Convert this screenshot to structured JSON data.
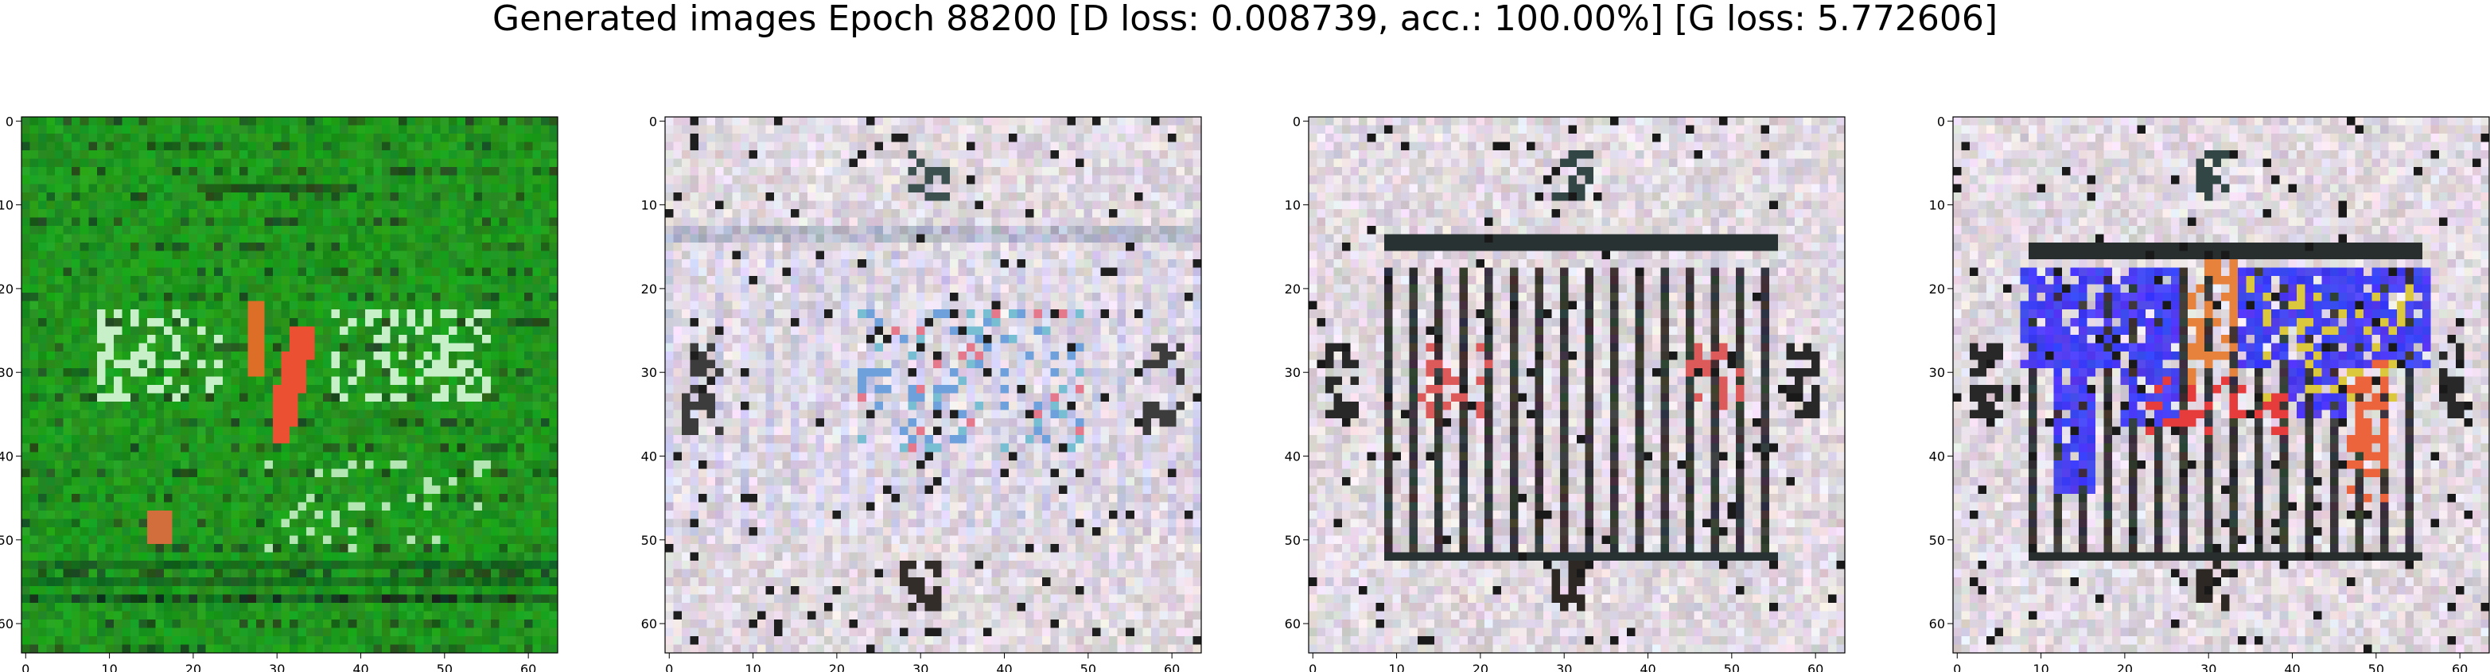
{
  "title": "Generated images Epoch 88200 [D loss: 0.008739, acc.: 100.00%] [G loss: 5.772606]",
  "subplots": [
    {
      "label": "generated-image-1",
      "dominant_colors": [
        "#1d8f1d",
        "#e8463a",
        "#d6f2d2"
      ]
    },
    {
      "label": "generated-image-2",
      "dominant_colors": [
        "#e8e2ea",
        "#6aa0d6",
        "#e87a86"
      ]
    },
    {
      "label": "generated-image-3",
      "dominant_colors": [
        "#e6e0e6",
        "#1a1a1a",
        "#e06060"
      ]
    },
    {
      "label": "generated-image-4",
      "dominant_colors": [
        "#e6e0e6",
        "#2a2aff",
        "#e05050"
      ]
    }
  ],
  "axes": {
    "x_ticks": [
      "0",
      "10",
      "20",
      "30",
      "40",
      "50",
      "60"
    ],
    "y_ticks": [
      "0",
      "10",
      "20",
      "30",
      "40",
      "50",
      "60"
    ],
    "x_range": [
      -0.5,
      63.5
    ],
    "y_range": [
      -0.5,
      63.5
    ]
  }
}
